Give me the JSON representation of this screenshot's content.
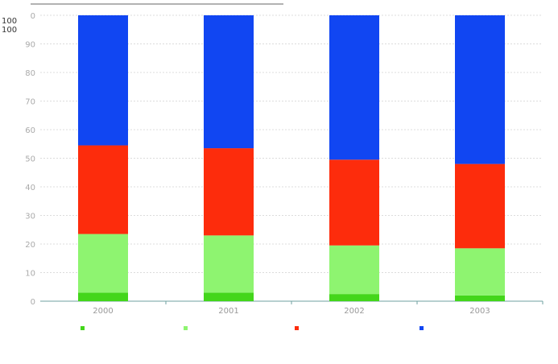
{
  "chart_data": {
    "type": "bar",
    "stacked": true,
    "categories": [
      "2000",
      "2001",
      "2002",
      "2003"
    ],
    "ylim": [
      0,
      100
    ],
    "yticks": [
      "0",
      "10",
      "20",
      "30",
      "40",
      "50",
      "60",
      "70",
      "80",
      "90",
      "100"
    ],
    "grid": true,
    "legend_position": "bottom",
    "series": [
      {
        "name": "",
        "color": "#43d61a",
        "values": [
          3,
          3,
          2.5,
          2
        ]
      },
      {
        "name": "",
        "color": "#8ef470",
        "values": [
          20.5,
          20,
          17,
          16.5
        ]
      },
      {
        "name": "",
        "color": "#fd2c0c",
        "values": [
          31,
          30.5,
          30,
          29.5
        ]
      },
      {
        "name": "",
        "color": "#1146f2",
        "values": [
          45.5,
          46.5,
          50.5,
          52
        ]
      }
    ],
    "corner_labels": [
      "100",
      "100"
    ]
  }
}
